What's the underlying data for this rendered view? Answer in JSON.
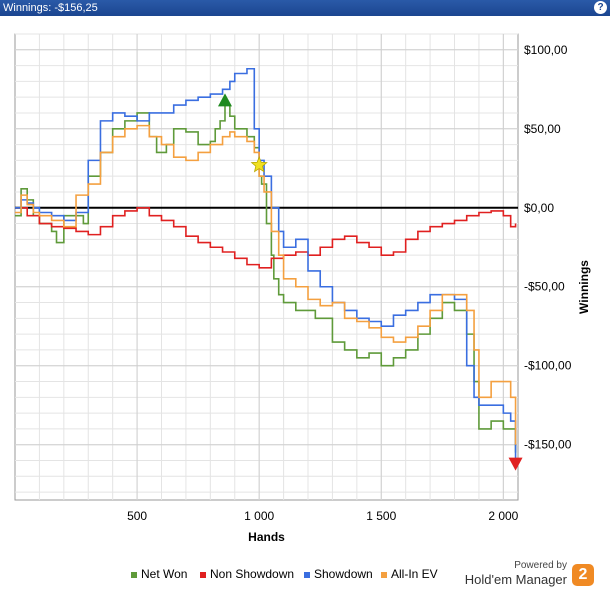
{
  "window": {
    "title": "Winnings: -$156,25",
    "help_icon": "question-icon"
  },
  "branding": {
    "powered_by": "Powered by",
    "product": "Hold'em Manager",
    "logo_text": "2",
    "logo_color": "#f08a24"
  },
  "chart_data": {
    "type": "line",
    "xlabel": "Hands",
    "ylabel": "Winnings",
    "xlim": [
      0,
      2060
    ],
    "ylim": [
      -185,
      110
    ],
    "x_ticks": [
      500,
      1000,
      1500,
      2000
    ],
    "x_tick_labels": [
      "500",
      "1 000",
      "1 500",
      "2 000"
    ],
    "y_ticks": [
      100,
      50,
      0,
      -50,
      -100,
      -150
    ],
    "y_tick_labels": [
      "$100,00",
      "$50,00",
      "$0,00",
      "-$50,00",
      "-$100,00",
      "-$150,00"
    ],
    "grid": true,
    "legend_position": "bottom",
    "series": [
      {
        "name": "Net Won",
        "color": "#5f9a3a",
        "x": [
          0,
          25,
          50,
          75,
          100,
          150,
          170,
          200,
          250,
          280,
          300,
          350,
          400,
          450,
          500,
          550,
          580,
          620,
          650,
          700,
          750,
          800,
          820,
          840,
          860,
          880,
          900,
          950,
          980,
          1000,
          1010,
          1030,
          1050,
          1060,
          1080,
          1100,
          1150,
          1200,
          1230,
          1300,
          1350,
          1400,
          1450,
          1500,
          1550,
          1600,
          1650,
          1700,
          1750,
          1800,
          1850,
          1880,
          1900,
          1950,
          2000,
          2030,
          2050
        ],
        "y": [
          -5,
          12,
          5,
          -5,
          -10,
          -15,
          -22,
          -5,
          -5,
          -10,
          20,
          35,
          50,
          55,
          60,
          45,
          35,
          40,
          50,
          48,
          40,
          42,
          50,
          55,
          65,
          58,
          50,
          45,
          38,
          20,
          15,
          -10,
          -30,
          -45,
          -55,
          -60,
          -65,
          -65,
          -70,
          -85,
          -90,
          -95,
          -92,
          -100,
          -95,
          -90,
          -80,
          -70,
          -60,
          -65,
          -80,
          -110,
          -140,
          -135,
          -140,
          -140,
          -155
        ]
      },
      {
        "name": "Non Showdown",
        "color": "#e02020",
        "x": [
          0,
          50,
          100,
          150,
          200,
          250,
          300,
          350,
          400,
          450,
          500,
          550,
          600,
          650,
          700,
          750,
          800,
          850,
          900,
          950,
          1000,
          1050,
          1100,
          1150,
          1200,
          1250,
          1300,
          1350,
          1400,
          1450,
          1500,
          1550,
          1600,
          1650,
          1700,
          1750,
          1800,
          1850,
          1900,
          1950,
          2000,
          2030,
          2050
        ],
        "y": [
          0,
          -5,
          -10,
          -12,
          -13,
          -15,
          -17,
          -12,
          -5,
          -2,
          0,
          -5,
          -8,
          -12,
          -18,
          -22,
          -25,
          -28,
          -32,
          -36,
          -38,
          -32,
          -30,
          -28,
          -30,
          -25,
          -20,
          -18,
          -22,
          -25,
          -30,
          -28,
          -20,
          -15,
          -12,
          -10,
          -8,
          -5,
          -3,
          -2,
          -5,
          -12,
          -10
        ]
      },
      {
        "name": "Showdown",
        "color": "#3a6ee0",
        "x": [
          0,
          25,
          50,
          75,
          100,
          150,
          200,
          250,
          300,
          350,
          400,
          450,
          500,
          550,
          600,
          650,
          700,
          750,
          800,
          850,
          880,
          900,
          950,
          980,
          1000,
          1020,
          1050,
          1080,
          1100,
          1150,
          1200,
          1250,
          1300,
          1350,
          1400,
          1450,
          1500,
          1550,
          1600,
          1650,
          1700,
          1750,
          1800,
          1850,
          1880,
          1900,
          1950,
          2000,
          2030,
          2050
        ],
        "y": [
          0,
          5,
          3,
          0,
          -3,
          -5,
          -8,
          -3,
          30,
          55,
          60,
          58,
          55,
          60,
          60,
          65,
          68,
          70,
          72,
          75,
          80,
          85,
          88,
          50,
          30,
          20,
          0,
          -15,
          -25,
          -20,
          -40,
          -50,
          -60,
          -65,
          -70,
          -72,
          -75,
          -68,
          -65,
          -60,
          -55,
          -55,
          -58,
          -100,
          -120,
          -125,
          -125,
          -130,
          -135,
          -160
        ]
      },
      {
        "name": "All-In EV",
        "color": "#f4a040",
        "x": [
          0,
          25,
          50,
          75,
          100,
          150,
          200,
          250,
          300,
          350,
          400,
          450,
          500,
          550,
          600,
          650,
          700,
          750,
          800,
          850,
          880,
          900,
          950,
          980,
          1000,
          1020,
          1050,
          1080,
          1100,
          1150,
          1200,
          1250,
          1300,
          1350,
          1400,
          1450,
          1500,
          1550,
          1600,
          1650,
          1700,
          1750,
          1800,
          1850,
          1880,
          1900,
          1950,
          2000,
          2030,
          2050
        ],
        "y": [
          -3,
          8,
          2,
          -3,
          -5,
          -8,
          -12,
          8,
          15,
          35,
          45,
          50,
          52,
          45,
          40,
          32,
          30,
          35,
          40,
          45,
          48,
          45,
          42,
          35,
          20,
          10,
          -15,
          -30,
          -45,
          -50,
          -58,
          -62,
          -60,
          -70,
          -72,
          -76,
          -82,
          -85,
          -82,
          -75,
          -65,
          -55,
          -55,
          -65,
          -90,
          -120,
          -110,
          -110,
          -120,
          -150
        ]
      }
    ],
    "annotations": [
      {
        "type": "max-marker",
        "x": 860,
        "y": 68,
        "color": "#1f8a1f"
      },
      {
        "type": "all-in-star",
        "x": 1000,
        "y": 27,
        "color": "#f0e020"
      },
      {
        "type": "min-marker",
        "x": 2050,
        "y": -162,
        "color": "#e02020"
      }
    ]
  }
}
